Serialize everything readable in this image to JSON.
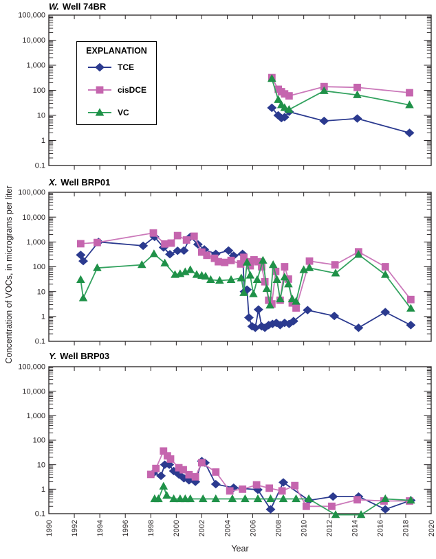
{
  "figure": {
    "y_axis_label": "Concentration of VOCs, in micrograms per liter",
    "x_axis_label": "Year",
    "legend": {
      "title": "EXPLANATION",
      "items": [
        {
          "label": "TCE"
        },
        {
          "label": "cisDCE"
        },
        {
          "label": "VC"
        }
      ]
    }
  },
  "chart_data": [
    {
      "type": "line",
      "title_letter": "W.",
      "title": "Well 74BR",
      "xlabel": "Year",
      "ylabel": "Concentration of VOCs, in micrograms per liter",
      "x_range": [
        1990,
        2020
      ],
      "x_tick_interval": 2,
      "y_scale": "log",
      "y_range": [
        0.1,
        100000
      ],
      "y_tick_labels": [
        "0.1",
        "1",
        "10",
        "100",
        "1,000",
        "10,000",
        "100,000"
      ],
      "grid": false,
      "legend_position": "upper-left-box",
      "series": [
        {
          "name": "TCE",
          "marker": "diamond",
          "color": "#2b3a8f",
          "line_color": "#2b3a8f",
          "points": [
            [
              2007.5,
              20
            ],
            [
              2008.0,
              10
            ],
            [
              2008.25,
              7.8
            ],
            [
              2008.5,
              8.5
            ],
            [
              2008.85,
              14
            ],
            [
              2011.6,
              6
            ],
            [
              2014.2,
              7.5
            ],
            [
              2018.3,
              2
            ]
          ]
        },
        {
          "name": "cisDCE",
          "marker": "square",
          "color": "#c565ae",
          "line_color": "#cb79ba",
          "points": [
            [
              2007.5,
              320
            ],
            [
              2008.0,
              110
            ],
            [
              2008.25,
              88
            ],
            [
              2008.5,
              72
            ],
            [
              2008.85,
              60
            ],
            [
              2011.6,
              140
            ],
            [
              2014.2,
              130
            ],
            [
              2018.3,
              80
            ]
          ]
        },
        {
          "name": "VC",
          "marker": "triangle",
          "color": "#1f9148",
          "line_color": "#33a25f",
          "points": [
            [
              2007.5,
              290
            ],
            [
              2008.0,
              42
            ],
            [
              2008.25,
              26
            ],
            [
              2008.5,
              20
            ],
            [
              2008.85,
              17
            ],
            [
              2011.6,
              95
            ],
            [
              2014.2,
              65
            ],
            [
              2018.3,
              26
            ]
          ]
        }
      ]
    },
    {
      "type": "line",
      "title_letter": "X.",
      "title": "Well BRP01",
      "xlabel": "Year",
      "ylabel": "Concentration of VOCs, in micrograms per liter",
      "x_range": [
        1990,
        2020
      ],
      "x_tick_interval": 2,
      "y_scale": "log",
      "y_range": [
        0.1,
        100000
      ],
      "y_tick_labels": [
        "0.1",
        "1",
        "10",
        "100",
        "1,000",
        "10,000",
        "100,000"
      ],
      "grid": false,
      "series": [
        {
          "name": "TCE",
          "marker": "diamond",
          "color": "#2b3a8f",
          "line_color": "#2b3a8f",
          "points": [
            [
              1992.5,
              300
            ],
            [
              1992.7,
              170
            ],
            [
              1993.9,
              1000
            ],
            [
              1997.4,
              700
            ],
            [
              1998.3,
              1600
            ],
            [
              1999.0,
              600
            ],
            [
              1999.5,
              320
            ],
            [
              2000.1,
              440
            ],
            [
              2000.6,
              450
            ],
            [
              2001.1,
              1600
            ],
            [
              2001.7,
              800
            ],
            [
              2002.2,
              500
            ],
            [
              2003.1,
              330
            ],
            [
              2004.1,
              450
            ],
            [
              2004.5,
              280
            ],
            [
              2005.2,
              330
            ],
            [
              2005.35,
              10
            ],
            [
              2005.55,
              12
            ],
            [
              2005.7,
              0.9
            ],
            [
              2005.95,
              0.4
            ],
            [
              2006.2,
              0.35
            ],
            [
              2006.45,
              1.9
            ],
            [
              2006.7,
              0.4
            ],
            [
              2006.95,
              0.35
            ],
            [
              2007.25,
              0.45
            ],
            [
              2007.55,
              0.5
            ],
            [
              2007.85,
              0.55
            ],
            [
              2008.15,
              0.45
            ],
            [
              2008.5,
              0.55
            ],
            [
              2008.85,
              0.5
            ],
            [
              2009.2,
              0.65
            ],
            [
              2010.3,
              1.8
            ],
            [
              2012.4,
              1.05
            ],
            [
              2014.3,
              0.35
            ],
            [
              2016.4,
              1.5
            ],
            [
              2018.4,
              0.45
            ]
          ]
        },
        {
          "name": "cisDCE",
          "marker": "square",
          "color": "#c565ae",
          "line_color": "#cb79ba",
          "points": [
            [
              1992.5,
              850
            ],
            [
              1993.8,
              950
            ],
            [
              1998.2,
              2300
            ],
            [
              1999.1,
              830
            ],
            [
              1999.6,
              900
            ],
            [
              2000.1,
              1800
            ],
            [
              2000.8,
              1200
            ],
            [
              2001.4,
              1700
            ],
            [
              2002.0,
              390
            ],
            [
              2002.4,
              290
            ],
            [
              2003.0,
              220
            ],
            [
              2003.3,
              160
            ],
            [
              2003.8,
              150
            ],
            [
              2004.3,
              180
            ],
            [
              2005.05,
              130
            ],
            [
              2005.3,
              240
            ],
            [
              2005.55,
              160
            ],
            [
              2005.8,
              110
            ],
            [
              2006.1,
              190
            ],
            [
              2006.4,
              160
            ],
            [
              2006.7,
              100
            ],
            [
              2006.95,
              25
            ],
            [
              2007.25,
              4.5
            ],
            [
              2007.5,
              3.2
            ],
            [
              2007.8,
              65
            ],
            [
              2008.15,
              4.5
            ],
            [
              2008.5,
              100
            ],
            [
              2008.8,
              32
            ],
            [
              2009.1,
              3.5
            ],
            [
              2009.4,
              2.2
            ],
            [
              2010.45,
              170
            ],
            [
              2012.45,
              120
            ],
            [
              2014.3,
              400
            ],
            [
              2016.4,
              100
            ],
            [
              2018.4,
              4.8
            ]
          ]
        },
        {
          "name": "VC",
          "marker": "triangle",
          "color": "#1f9148",
          "line_color": "#33a25f",
          "points": [
            [
              1992.5,
              30
            ],
            [
              1992.7,
              5.5
            ],
            [
              1993.8,
              90
            ],
            [
              1997.3,
              120
            ],
            [
              1998.25,
              330
            ],
            [
              1999.1,
              140
            ],
            [
              1999.9,
              48
            ],
            [
              2000.3,
              52
            ],
            [
              2000.7,
              62
            ],
            [
              2001.1,
              75
            ],
            [
              2001.6,
              48
            ],
            [
              2002.0,
              44
            ],
            [
              2002.3,
              41
            ],
            [
              2002.7,
              30
            ],
            [
              2003.4,
              28
            ],
            [
              2004.3,
              30
            ],
            [
              2005.1,
              35
            ],
            [
              2005.3,
              9
            ],
            [
              2005.55,
              150
            ],
            [
              2005.8,
              45
            ],
            [
              2006.05,
              8
            ],
            [
              2006.35,
              30
            ],
            [
              2006.8,
              180
            ],
            [
              2007.1,
              13
            ],
            [
              2007.35,
              2.8
            ],
            [
              2007.6,
              120
            ],
            [
              2007.9,
              30
            ],
            [
              2008.15,
              5
            ],
            [
              2008.5,
              38
            ],
            [
              2008.8,
              20
            ],
            [
              2009.1,
              5
            ],
            [
              2009.4,
              4
            ],
            [
              2010.0,
              75
            ],
            [
              2010.45,
              90
            ],
            [
              2012.5,
              55
            ],
            [
              2014.3,
              310
            ],
            [
              2016.4,
              48
            ],
            [
              2018.4,
              2.1
            ]
          ]
        }
      ]
    },
    {
      "type": "line",
      "title_letter": "Y.",
      "title": "Well BRP03",
      "xlabel": "Year",
      "ylabel": "Concentration of VOCs, in micrograms per liter",
      "x_range": [
        1990,
        2020
      ],
      "x_tick_interval": 2,
      "y_scale": "log",
      "y_range": [
        0.1,
        100000
      ],
      "y_tick_labels": [
        "0.1",
        "1",
        "10",
        "100",
        "1,000",
        "10,000",
        "100,000"
      ],
      "grid": false,
      "series": [
        {
          "name": "TCE",
          "marker": "diamond",
          "color": "#2b3a8f",
          "line_color": "#2b3a8f",
          "points": [
            [
              1998.2,
              4.5
            ],
            [
              1998.8,
              3.5
            ],
            [
              1999.1,
              10
            ],
            [
              1999.45,
              10
            ],
            [
              1999.8,
              5.5
            ],
            [
              2000.2,
              4.0
            ],
            [
              2000.6,
              2.8
            ],
            [
              2001.0,
              2.3
            ],
            [
              2001.5,
              2.0
            ],
            [
              2002.0,
              14
            ],
            [
              2002.25,
              12
            ],
            [
              2003.1,
              1.6
            ],
            [
              2004.5,
              1.15
            ],
            [
              2006.4,
              0.95
            ],
            [
              2007.4,
              0.15
            ],
            [
              2008.4,
              1.9
            ],
            [
              2010.4,
              0.35
            ],
            [
              2012.3,
              0.5
            ],
            [
              2014.3,
              0.5
            ],
            [
              2016.4,
              0.15
            ],
            [
              2018.4,
              0.35
            ]
          ]
        },
        {
          "name": "cisDCE",
          "marker": "square",
          "color": "#c565ae",
          "line_color": "#cb79ba",
          "points": [
            [
              1998.0,
              4.0
            ],
            [
              1998.4,
              7.0
            ],
            [
              1999.0,
              36
            ],
            [
              1999.3,
              23
            ],
            [
              1999.55,
              17
            ],
            [
              2000.2,
              7.5
            ],
            [
              2000.55,
              6.2
            ],
            [
              2001.0,
              3.9
            ],
            [
              2001.5,
              3.2
            ],
            [
              2002.0,
              12
            ],
            [
              2003.1,
              5.0
            ],
            [
              2004.2,
              0.85
            ],
            [
              2005.2,
              1.0
            ],
            [
              2006.3,
              1.5
            ],
            [
              2007.3,
              1.1
            ],
            [
              2008.3,
              0.85
            ],
            [
              2009.3,
              1.4
            ],
            [
              2010.2,
              0.2
            ],
            [
              2012.2,
              0.2
            ],
            [
              2014.2,
              0.37
            ],
            [
              2016.3,
              0.33
            ],
            [
              2018.3,
              0.33
            ]
          ]
        },
        {
          "name": "VC",
          "marker": "triangle",
          "color": "#1f9148",
          "line_color": "#33a25f",
          "points": [
            [
              1998.3,
              0.4
            ],
            [
              1998.6,
              0.4
            ],
            [
              1999.0,
              1.3
            ],
            [
              1999.25,
              0.55
            ],
            [
              1999.8,
              0.4
            ],
            [
              2000.3,
              0.4
            ],
            [
              2000.7,
              0.4
            ],
            [
              2001.1,
              0.4
            ],
            [
              2002.1,
              0.4
            ],
            [
              2003.1,
              0.4
            ],
            [
              2004.4,
              0.4
            ],
            [
              2005.4,
              0.4
            ],
            [
              2006.4,
              0.4
            ],
            [
              2007.4,
              0.4
            ],
            [
              2008.4,
              0.4
            ],
            [
              2009.4,
              0.4
            ],
            [
              2010.4,
              0.4
            ],
            [
              2012.5,
              0.09
            ],
            [
              2014.5,
              0.09
            ],
            [
              2016.4,
              0.4
            ],
            [
              2018.4,
              0.35
            ]
          ]
        }
      ]
    }
  ]
}
